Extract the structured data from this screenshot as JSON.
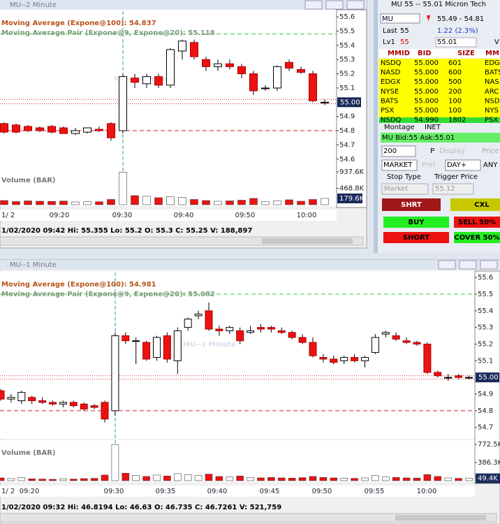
{
  "windows": [
    {
      "title": "MU--2 Minute",
      "watermark": "MU--2 Minute",
      "ma_label": "Moving Average (Expone@100): 54.837",
      "pair_label": "Moving Average Pair (Expone@9, Expone@20): 55.118",
      "volume_label": "Volume (BAR)",
      "page_tab": "1/ 2",
      "status": "1/02/2020 09:42  Hi: 55.355  Lo: 55.2  O: 55.3  C: 55.25  V: 188,897",
      "times": [
        "09:20",
        "09:30",
        "09:40",
        "09:50",
        "10:00"
      ],
      "ylim": [
        54.54,
        55.64
      ],
      "yticks": [
        55.6,
        55.5,
        55.4,
        55.3,
        55.2,
        55.1,
        54.9,
        54.8,
        54.7,
        54.6
      ],
      "last": {
        "value": 55,
        "label": "55.00"
      },
      "vol_ylim": [
        0,
        937.6
      ],
      "vol_ticks": [
        {
          "value": 937.6,
          "label": "937.6K"
        },
        {
          "value": 468.8,
          "label": "468.8K"
        }
      ],
      "vol_last": {
        "value": 179.6,
        "label": "179.6K"
      },
      "levels": [
        {
          "value": 55.48,
          "color": "#33cc33",
          "dash": "6,4"
        },
        {
          "value": 54.8,
          "color": "#dd2222",
          "dash": "6,4"
        },
        {
          "value": 55.02,
          "color": "#dd2222",
          "dash": "1,2"
        },
        {
          "value": 54.99,
          "color": "#dd2222",
          "dash": "1,2"
        }
      ],
      "candles": [
        [
          54.85,
          54.86,
          54.78,
          54.79
        ],
        [
          54.84,
          54.85,
          54.78,
          54.79
        ],
        [
          54.83,
          54.84,
          54.79,
          54.8
        ],
        [
          54.82,
          54.83,
          54.79,
          54.8
        ],
        [
          54.83,
          54.84,
          54.78,
          54.79
        ],
        [
          54.82,
          54.83,
          54.78,
          54.78
        ],
        [
          54.78,
          54.82,
          54.77,
          54.8
        ],
        [
          54.79,
          54.82,
          54.78,
          54.82
        ],
        [
          54.81,
          54.83,
          54.79,
          54.8
        ],
        [
          54.85,
          54.86,
          54.73,
          54.75
        ],
        [
          54.8,
          55.2,
          54.78,
          55.18
        ],
        [
          55.17,
          55.2,
          55.1,
          55.14
        ],
        [
          55.13,
          55.2,
          55.1,
          55.18
        ],
        [
          55.18,
          55.2,
          55.1,
          55.12
        ],
        [
          55.12,
          55.38,
          55.1,
          55.37
        ],
        [
          55.36,
          55.44,
          55.3,
          55.43
        ],
        [
          55.42,
          55.44,
          55.3,
          55.32
        ],
        [
          55.3,
          55.32,
          55.22,
          55.25
        ],
        [
          55.25,
          55.3,
          55.22,
          55.27
        ],
        [
          55.27,
          55.3,
          55.23,
          55.25
        ],
        [
          55.25,
          55.27,
          55.17,
          55.2
        ],
        [
          55.2,
          55.22,
          55.05,
          55.08
        ],
        [
          55.1,
          55.12,
          55.08,
          55.1
        ],
        [
          55.1,
          55.26,
          55.08,
          55.25
        ],
        [
          55.28,
          55.3,
          55.22,
          55.24
        ],
        [
          55.23,
          55.25,
          55.2,
          55.21
        ],
        [
          55.2,
          55.22,
          55.0,
          55.01
        ],
        [
          55.0,
          55.02,
          54.98,
          55.0
        ]
      ],
      "volumes": [
        120,
        90,
        110,
        100,
        95,
        105,
        80,
        90,
        85,
        150,
        930,
        260,
        240,
        200,
        230,
        210,
        150,
        120,
        100,
        110,
        130,
        180,
        90,
        110,
        140,
        100,
        150,
        179.6
      ]
    },
    {
      "title": "MU--1 Minute",
      "watermark": "MU--1 Minute",
      "ma_label": "Moving Average (Expone@100): 54.981",
      "pair_label": "Moving Average Pair (Expone@9, Expone@20): 55.082",
      "volume_label": "Volume (BAR)",
      "page_tab": "1/ 2",
      "status": "1/02/2020 09:32  Hi: 46.8194  Lo: 46.63  O: 46.735  C: 46.7261  V: 521,759",
      "times": [
        "09:20",
        "09:30",
        "09:35",
        "09:40",
        "09:45",
        "09:50",
        "09:55",
        "10:00"
      ],
      "ylim": [
        54.64,
        55.63
      ],
      "yticks": [
        55.6,
        55.5,
        55.4,
        55.3,
        55.2,
        55.1,
        54.9,
        54.8,
        54.7
      ],
      "last": {
        "value": 55,
        "label": "55.00"
      },
      "vol_ylim": [
        0,
        772.5
      ],
      "vol_ticks": [
        {
          "value": 772.5,
          "label": "772.5K"
        },
        {
          "value": 386.3,
          "label": "386.3K"
        }
      ],
      "vol_last": {
        "value": 49.4,
        "label": "49.4K"
      },
      "levels": [
        {
          "value": 55.5,
          "color": "#33cc33",
          "dash": "6,4"
        },
        {
          "value": 54.8,
          "color": "#dd2222",
          "dash": "6,4"
        },
        {
          "value": 55.01,
          "color": "#dd2222",
          "dash": "1,2"
        },
        {
          "value": 54.99,
          "color": "#dd2222",
          "dash": "1,2"
        }
      ],
      "candles": [
        [
          54.92,
          54.93,
          54.86,
          54.87
        ],
        [
          54.87,
          54.9,
          54.85,
          54.88
        ],
        [
          54.86,
          54.92,
          54.84,
          54.91
        ],
        [
          54.88,
          54.89,
          54.84,
          54.86
        ],
        [
          54.86,
          54.88,
          54.84,
          54.85
        ],
        [
          54.85,
          54.86,
          54.83,
          54.84
        ],
        [
          54.84,
          54.86,
          54.82,
          54.85
        ],
        [
          54.85,
          54.86,
          54.82,
          54.83
        ],
        [
          54.84,
          54.85,
          54.8,
          54.81
        ],
        [
          54.83,
          54.84,
          54.81,
          54.82
        ],
        [
          54.85,
          54.86,
          54.73,
          54.75
        ],
        [
          54.8,
          55.27,
          54.77,
          55.25
        ],
        [
          55.25,
          55.27,
          55.2,
          55.22
        ],
        [
          55.22,
          55.24,
          55.08,
          55.22
        ],
        [
          55.21,
          55.22,
          55.1,
          55.11
        ],
        [
          55.12,
          55.25,
          55.1,
          55.24
        ],
        [
          55.25,
          55.27,
          55.09,
          55.11
        ],
        [
          55.1,
          55.3,
          55.02,
          55.28
        ],
        [
          55.3,
          55.36,
          55.28,
          55.35
        ],
        [
          55.37,
          55.4,
          55.35,
          55.38
        ],
        [
          55.4,
          55.45,
          55.28,
          55.29
        ],
        [
          55.29,
          55.31,
          55.25,
          55.28
        ],
        [
          55.28,
          55.31,
          55.26,
          55.3
        ],
        [
          55.28,
          55.3,
          55.2,
          55.22
        ],
        [
          55.27,
          55.31,
          55.26,
          55.28
        ],
        [
          55.3,
          55.32,
          55.27,
          55.29
        ],
        [
          55.3,
          55.31,
          55.27,
          55.29
        ],
        [
          55.28,
          55.3,
          55.26,
          55.27
        ],
        [
          55.27,
          55.28,
          55.23,
          55.24
        ],
        [
          55.24,
          55.26,
          55.2,
          55.21
        ],
        [
          55.21,
          55.24,
          55.12,
          55.13
        ],
        [
          55.12,
          55.14,
          55.09,
          55.11
        ],
        [
          55.11,
          55.13,
          55.08,
          55.09
        ],
        [
          55.1,
          55.13,
          55.08,
          55.12
        ],
        [
          55.12,
          55.14,
          55.09,
          55.1
        ],
        [
          55.1,
          55.13,
          55.06,
          55.12
        ],
        [
          55.15,
          55.26,
          55.14,
          55.24
        ],
        [
          55.26,
          55.28,
          55.24,
          55.27
        ],
        [
          55.25,
          55.27,
          55.22,
          55.23
        ],
        [
          55.22,
          55.24,
          55.2,
          55.21
        ],
        [
          55.21,
          55.22,
          55.19,
          55.2
        ],
        [
          55.2,
          55.21,
          55.02,
          55.03
        ],
        [
          55.03,
          55.04,
          55.0,
          55.01
        ],
        [
          55.0,
          55.02,
          54.98,
          55.0
        ],
        [
          55.01,
          55.02,
          54.99,
          55.0
        ],
        [
          55.0,
          55.01,
          54.99,
          55.0
        ]
      ],
      "volumes": [
        60,
        45,
        70,
        40,
        35,
        30,
        40,
        35,
        45,
        50,
        120,
        770,
        160,
        110,
        90,
        120,
        100,
        150,
        130,
        110,
        140,
        90,
        80,
        100,
        70,
        60,
        70,
        60,
        55,
        65,
        90,
        70,
        60,
        55,
        50,
        60,
        110,
        80,
        70,
        60,
        55,
        130,
        90,
        60,
        50,
        49.4
      ]
    }
  ],
  "level2": {
    "title": "MU    55 -- 55.01    Micron Tech",
    "symbol": "MU",
    "range": "55.49 - 54.81",
    "last_label": "Last",
    "last": "55",
    "change": "1.22  (2.3%)",
    "lv1_label": "Lv1",
    "bid": "55",
    "ask": "55.01",
    "v": "V",
    "headers": [
      "MMID",
      "BID",
      "SIZE",
      "MM"
    ],
    "rows": [
      [
        "NSDQ",
        "55.000",
        "601",
        "EDG"
      ],
      [
        "NASD",
        "55.000",
        "600",
        "BATS"
      ],
      [
        "EDGX",
        "55.000",
        "500",
        "NAS"
      ],
      [
        "NYSE",
        "55.000",
        "200",
        "ARC"
      ],
      [
        "BATS",
        "55.000",
        "100",
        "NSD"
      ],
      [
        "PSX",
        "55.000",
        "100",
        "NYS"
      ],
      [
        "NSDQ",
        "54.990",
        "1802",
        "PSX"
      ]
    ],
    "tabs": [
      "Montage",
      "INET"
    ],
    "quote": "MU Bid:55 Ask:55.01",
    "qty": "200",
    "p": "P",
    "display": "Display",
    "price": "Price",
    "order_type": "MARKET",
    "pref": "Pref",
    "tif": "DAY+",
    "route": "ANY",
    "stop_type_label": "Stop Type",
    "trigger_label": "Trigger Price",
    "stop_type": "Market",
    "trigger": "55.12",
    "buttons": [
      "SHRT",
      "CXL",
      "BUY",
      "SELL 50%",
      "SHORT",
      "COVER 50%"
    ]
  }
}
